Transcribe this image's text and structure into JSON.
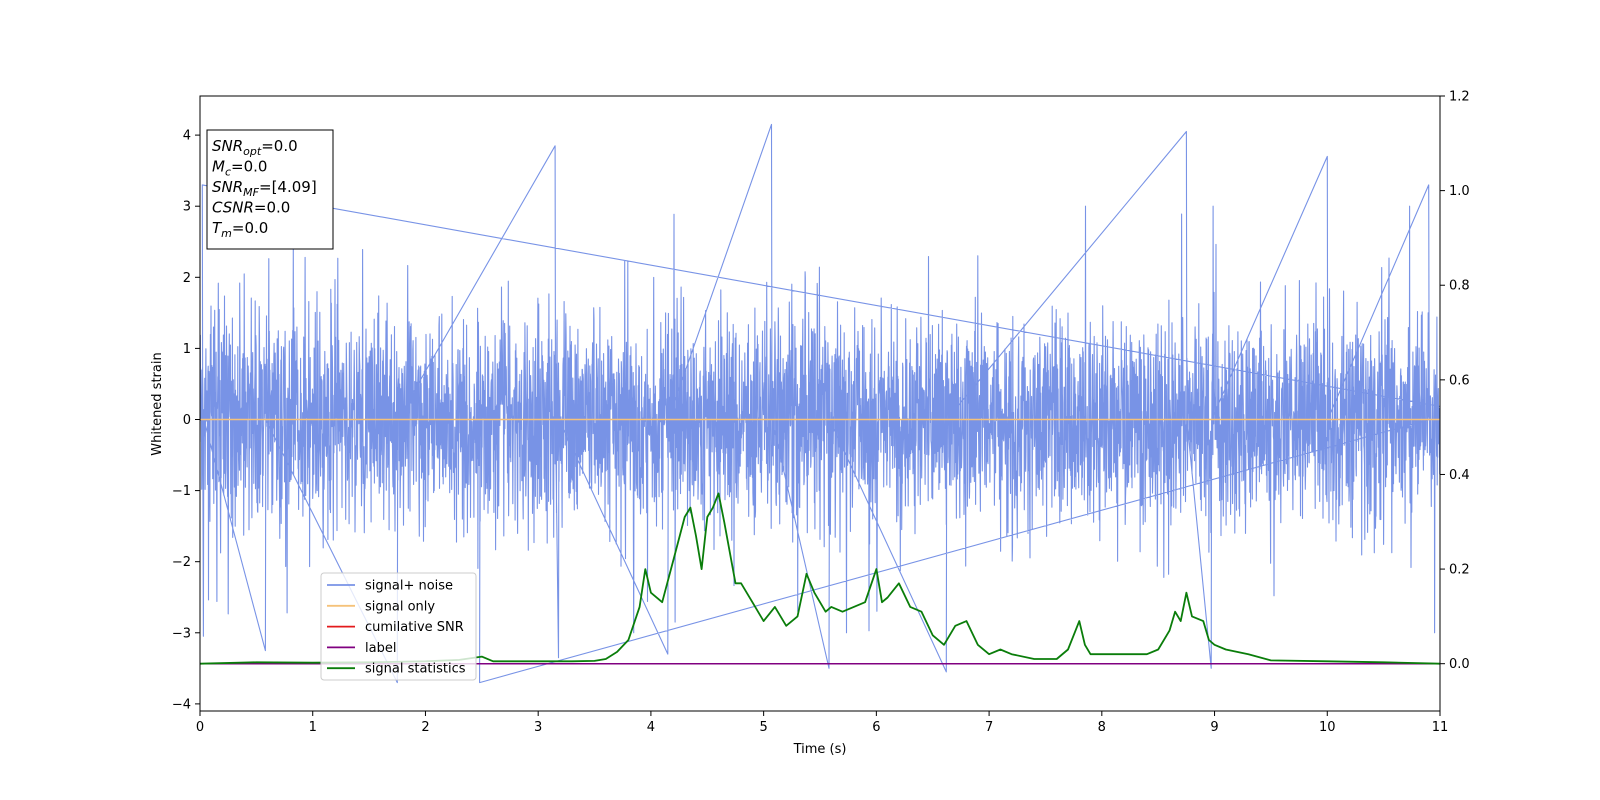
{
  "chart_data": {
    "type": "line",
    "xlabel": "Time (s)",
    "ylabel": "Whitened strain",
    "xlim": [
      0,
      11
    ],
    "ylim": [
      -4.1,
      4.55
    ],
    "y2lim": [
      -0.1,
      1.2
    ],
    "x_ticks": [
      "0",
      "1",
      "2",
      "3",
      "4",
      "5",
      "6",
      "7",
      "8",
      "9",
      "10",
      "11"
    ],
    "y_ticks": [
      "−4",
      "−3",
      "−2",
      "−1",
      "0",
      "1",
      "2",
      "3",
      "4"
    ],
    "y2_ticks": [
      "0.0",
      "0.2",
      "0.4",
      "0.6",
      "0.8",
      "1.0",
      "1.2"
    ],
    "grid": false,
    "legend_position": "lower-left",
    "legend": [
      {
        "label": "signal+ noise",
        "color": "#7893e6"
      },
      {
        "label": "signal only",
        "color": "#f5c27a"
      },
      {
        "label": "cumilative SNR",
        "color": "#e31a1c"
      },
      {
        "label": "label",
        "color": "#800080"
      },
      {
        "label": "signal statistics",
        "color": "#0a7d0a"
      }
    ],
    "info_box": [
      {
        "var": "SNR",
        "sub": "opt",
        "value": "=0.0"
      },
      {
        "var": "M",
        "sub": "c",
        "value": "=0.0"
      },
      {
        "var": "SNR",
        "sub": "MF",
        "value": "=[4.09]"
      },
      {
        "var": "CSNR",
        "sub": "",
        "value": "=0.0"
      },
      {
        "var": "T",
        "sub": "m",
        "value": "=0.0"
      }
    ],
    "series": [
      {
        "name": "signal+ noise",
        "axis": "left",
        "style": "dense noise, amplitude ~±1.6 with spikes",
        "spikes": [
          {
            "x": 0.02,
            "y": 3.3
          },
          {
            "x": 0.03,
            "y": -3.05
          },
          {
            "x": 0.58,
            "y": -3.25
          },
          {
            "x": 1.75,
            "y": -3.7
          },
          {
            "x": 3.15,
            "y": 3.85
          },
          {
            "x": 3.18,
            "y": -3.35
          },
          {
            "x": 4.15,
            "y": -3.3
          },
          {
            "x": 5.07,
            "y": 4.15
          },
          {
            "x": 5.58,
            "y": -3.5
          },
          {
            "x": 6.62,
            "y": -3.55
          },
          {
            "x": 8.75,
            "y": 4.05
          },
          {
            "x": 8.97,
            "y": -3.5
          },
          {
            "x": 10.0,
            "y": 3.7
          },
          {
            "x": 10.9,
            "y": 3.3
          },
          {
            "x": 2.48,
            "y": -3.7
          }
        ]
      },
      {
        "name": "signal only",
        "axis": "left",
        "x": [
          0,
          11
        ],
        "y": [
          0,
          0
        ]
      },
      {
        "name": "label",
        "axis": "right",
        "x": [
          0,
          11
        ],
        "y": [
          0,
          0
        ]
      },
      {
        "name": "signal statistics",
        "axis": "right",
        "x": [
          0,
          0.5,
          1.0,
          1.5,
          2.0,
          2.3,
          2.5,
          2.6,
          3.0,
          3.3,
          3.5,
          3.6,
          3.7,
          3.8,
          3.9,
          3.95,
          4.0,
          4.1,
          4.2,
          4.3,
          4.35,
          4.4,
          4.45,
          4.5,
          4.55,
          4.6,
          4.65,
          4.75,
          4.8,
          4.9,
          5.0,
          5.1,
          5.2,
          5.3,
          5.38,
          5.45,
          5.55,
          5.6,
          5.7,
          5.8,
          5.9,
          6.0,
          6.05,
          6.1,
          6.2,
          6.3,
          6.4,
          6.5,
          6.6,
          6.7,
          6.8,
          6.9,
          7.0,
          7.1,
          7.2,
          7.4,
          7.6,
          7.7,
          7.8,
          7.85,
          7.9,
          8.0,
          8.2,
          8.4,
          8.5,
          8.6,
          8.65,
          8.7,
          8.75,
          8.8,
          8.9,
          8.95,
          9.0,
          9.1,
          9.3,
          9.5,
          10.0,
          10.5,
          11.0
        ],
        "y": [
          0.0,
          0.003,
          0.002,
          0.003,
          0.005,
          0.008,
          0.015,
          0.005,
          0.005,
          0.005,
          0.006,
          0.01,
          0.025,
          0.05,
          0.12,
          0.2,
          0.15,
          0.13,
          0.22,
          0.31,
          0.33,
          0.27,
          0.2,
          0.31,
          0.33,
          0.36,
          0.3,
          0.17,
          0.17,
          0.13,
          0.09,
          0.12,
          0.08,
          0.1,
          0.19,
          0.15,
          0.11,
          0.12,
          0.11,
          0.12,
          0.13,
          0.2,
          0.13,
          0.14,
          0.17,
          0.12,
          0.11,
          0.06,
          0.04,
          0.08,
          0.09,
          0.04,
          0.02,
          0.03,
          0.02,
          0.01,
          0.01,
          0.03,
          0.09,
          0.04,
          0.02,
          0.02,
          0.02,
          0.02,
          0.03,
          0.07,
          0.11,
          0.09,
          0.15,
          0.1,
          0.09,
          0.05,
          0.04,
          0.03,
          0.02,
          0.007,
          0.005,
          0.003,
          0.0
        ]
      }
    ]
  }
}
